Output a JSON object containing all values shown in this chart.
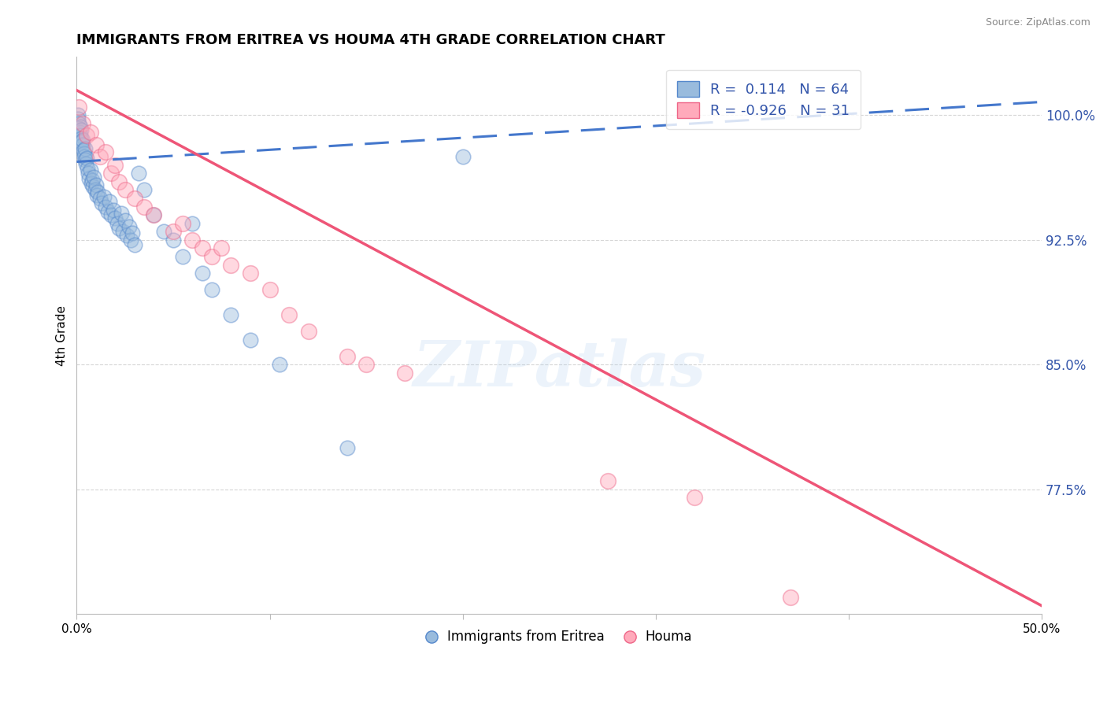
{
  "title": "IMMIGRANTS FROM ERITREA VS HOUMA 4TH GRADE CORRELATION CHART",
  "source": "Source: ZipAtlas.com",
  "ylabel": "4th Grade",
  "xlim": [
    0.0,
    50.0
  ],
  "ylim": [
    70.0,
    103.5
  ],
  "yticks": [
    77.5,
    85.0,
    92.5,
    100.0
  ],
  "ytick_labels": [
    "77.5%",
    "85.0%",
    "92.5%",
    "100.0%"
  ],
  "legend_labels": [
    "Immigrants from Eritrea",
    "Houma"
  ],
  "R_blue": 0.114,
  "N_blue": 64,
  "R_pink": -0.926,
  "N_pink": 31,
  "blue_color": "#99BBDD",
  "pink_color": "#FFAABB",
  "blue_edge_color": "#5588CC",
  "pink_edge_color": "#EE6688",
  "blue_line_color": "#4477CC",
  "pink_line_color": "#EE5577",
  "text_color": "#3355AA",
  "watermark": "ZIPatlas",
  "background_color": "#FFFFFF",
  "blue_scatter_x": [
    0.05,
    0.08,
    0.1,
    0.12,
    0.15,
    0.18,
    0.2,
    0.22,
    0.25,
    0.28,
    0.3,
    0.32,
    0.35,
    0.38,
    0.4,
    0.42,
    0.45,
    0.48,
    0.5,
    0.55,
    0.6,
    0.65,
    0.7,
    0.75,
    0.8,
    0.85,
    0.9,
    0.95,
    1.0,
    1.05,
    1.1,
    1.2,
    1.3,
    1.4,
    1.5,
    1.6,
    1.7,
    1.8,
    1.9,
    2.0,
    2.1,
    2.2,
    2.3,
    2.4,
    2.5,
    2.6,
    2.7,
    2.8,
    2.9,
    3.0,
    3.2,
    3.5,
    4.0,
    4.5,
    5.0,
    5.5,
    6.0,
    6.5,
    7.0,
    8.0,
    9.0,
    10.5,
    14.0,
    20.0
  ],
  "blue_scatter_y": [
    100.0,
    99.8,
    99.5,
    99.2,
    99.0,
    99.3,
    98.8,
    99.1,
    98.6,
    98.4,
    98.2,
    98.5,
    97.9,
    97.7,
    97.5,
    98.0,
    97.3,
    97.1,
    97.4,
    96.8,
    96.5,
    96.2,
    96.7,
    95.9,
    96.1,
    95.7,
    96.3,
    95.5,
    95.8,
    95.2,
    95.4,
    95.0,
    94.7,
    95.1,
    94.5,
    94.2,
    94.8,
    94.0,
    94.3,
    93.8,
    93.5,
    93.2,
    94.1,
    93.0,
    93.7,
    92.8,
    93.3,
    92.5,
    92.9,
    92.2,
    96.5,
    95.5,
    94.0,
    93.0,
    92.5,
    91.5,
    93.5,
    90.5,
    89.5,
    88.0,
    86.5,
    85.0,
    80.0,
    97.5
  ],
  "pink_scatter_x": [
    0.1,
    0.3,
    0.5,
    0.7,
    1.0,
    1.2,
    1.5,
    1.8,
    2.0,
    2.2,
    2.5,
    3.0,
    3.5,
    4.0,
    5.0,
    5.5,
    6.0,
    6.5,
    7.0,
    7.5,
    8.0,
    9.0,
    10.0,
    11.0,
    12.0,
    14.0,
    15.0,
    17.0,
    27.5,
    32.0,
    37.0
  ],
  "pink_scatter_y": [
    100.5,
    99.5,
    98.8,
    99.0,
    98.2,
    97.5,
    97.8,
    96.5,
    97.0,
    96.0,
    95.5,
    95.0,
    94.5,
    94.0,
    93.0,
    93.5,
    92.5,
    92.0,
    91.5,
    92.0,
    91.0,
    90.5,
    89.5,
    88.0,
    87.0,
    85.5,
    85.0,
    84.5,
    78.0,
    77.0,
    71.0
  ],
  "blue_trendline": [
    0.0,
    97.2,
    50.0,
    100.8
  ],
  "pink_trendline": [
    0.0,
    101.5,
    50.0,
    70.5
  ],
  "xtick_positions": [
    0,
    10,
    20,
    30,
    40,
    50
  ],
  "xtick_labels": [
    "0.0%",
    "",
    "",
    "",
    "",
    "50.0%"
  ]
}
